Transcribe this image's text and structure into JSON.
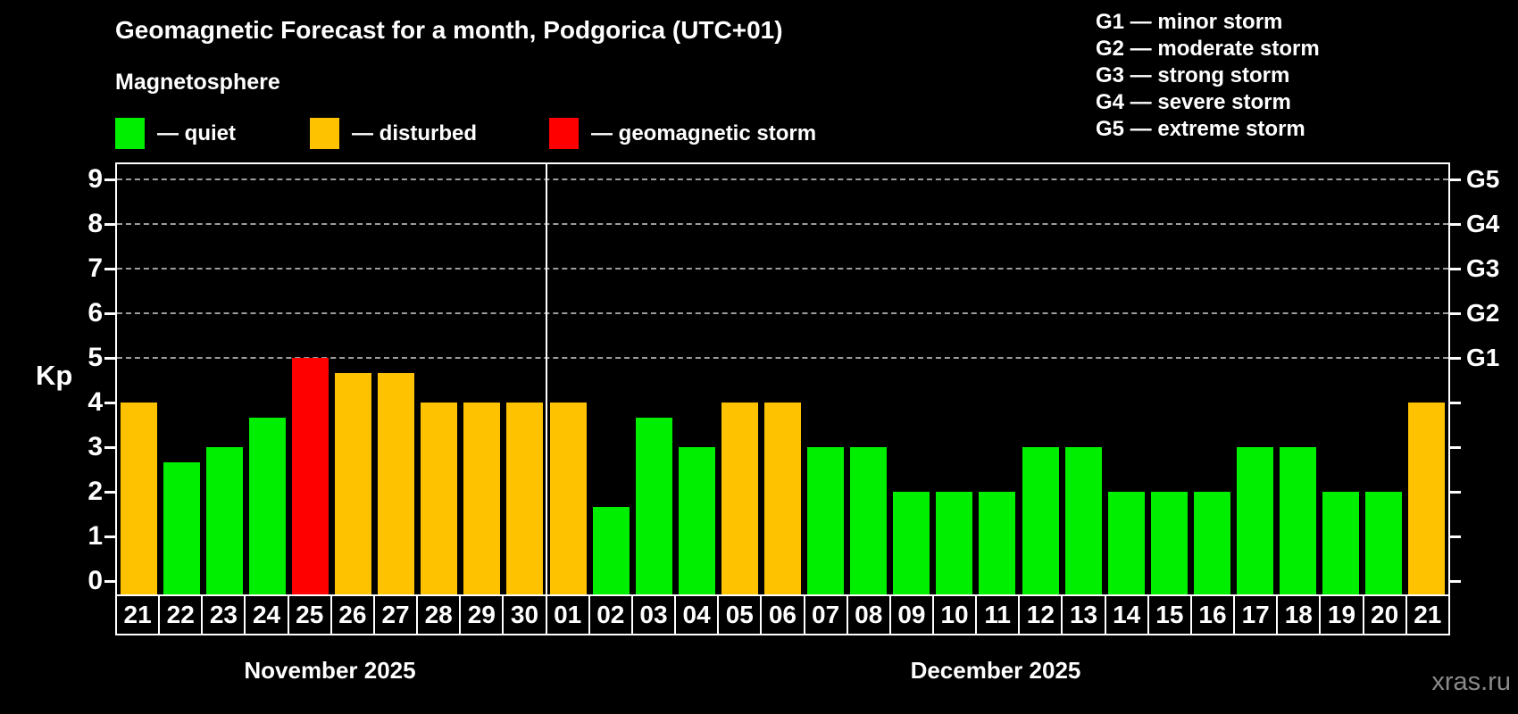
{
  "title": "Geomagnetic Forecast for a month, Podgorica (UTC+01)",
  "subtitle": "Magnetosphere",
  "legend": {
    "items": [
      {
        "label": "— quiet",
        "color_key": "quiet"
      },
      {
        "label": "— disturbed",
        "color_key": "disturbed"
      },
      {
        "label": "— geomagnetic storm",
        "color_key": "storm"
      }
    ]
  },
  "g_legend": [
    "G1 — minor storm",
    "G2 — moderate storm",
    "G3 — strong storm",
    "G4 — severe storm",
    "G5 — extreme storm"
  ],
  "colors": {
    "quiet": "#00ee00",
    "disturbed": "#ffc200",
    "storm": "#ff0000",
    "gridline": "#9d9d9d",
    "frame": "#ffffff",
    "watermark": "#8a8a8a"
  },
  "watermark": "xras.ru",
  "chart_data": {
    "type": "bar",
    "title": "Geomagnetic Forecast for a month, Podgorica (UTC+01)",
    "xlabel": "",
    "ylabel": "Kp",
    "ylim": [
      0,
      9
    ],
    "yticks": [
      0,
      1,
      2,
      3,
      4,
      5,
      6,
      7,
      8,
      9
    ],
    "grid": "horizontal dashed lines at Kp 5-9 only",
    "legend_position": "top",
    "right_axis_labels": [
      {
        "kp": 5,
        "label": "G1"
      },
      {
        "kp": 6,
        "label": "G2"
      },
      {
        "kp": 7,
        "label": "G3"
      },
      {
        "kp": 8,
        "label": "G4"
      },
      {
        "kp": 9,
        "label": "G5"
      }
    ],
    "months": [
      {
        "label": "November 2025",
        "days": 10
      },
      {
        "label": "December 2025",
        "days": 21
      }
    ],
    "bars": [
      {
        "month": "November 2025",
        "day": "21",
        "value": 4,
        "status": "disturbed"
      },
      {
        "month": "November 2025",
        "day": "22",
        "value": 2.67,
        "status": "quiet"
      },
      {
        "month": "November 2025",
        "day": "23",
        "value": 3,
        "status": "quiet"
      },
      {
        "month": "November 2025",
        "day": "24",
        "value": 3.67,
        "status": "quiet"
      },
      {
        "month": "November 2025",
        "day": "25",
        "value": 5,
        "status": "storm"
      },
      {
        "month": "November 2025",
        "day": "26",
        "value": 4.67,
        "status": "disturbed"
      },
      {
        "month": "November 2025",
        "day": "27",
        "value": 4.67,
        "status": "disturbed"
      },
      {
        "month": "November 2025",
        "day": "28",
        "value": 4,
        "status": "disturbed"
      },
      {
        "month": "November 2025",
        "day": "29",
        "value": 4,
        "status": "disturbed"
      },
      {
        "month": "November 2025",
        "day": "30",
        "value": 4,
        "status": "disturbed"
      },
      {
        "month": "December 2025",
        "day": "01",
        "value": 4,
        "status": "disturbed"
      },
      {
        "month": "December 2025",
        "day": "02",
        "value": 1.67,
        "status": "quiet"
      },
      {
        "month": "December 2025",
        "day": "03",
        "value": 3.67,
        "status": "quiet"
      },
      {
        "month": "December 2025",
        "day": "04",
        "value": 3,
        "status": "quiet"
      },
      {
        "month": "December 2025",
        "day": "05",
        "value": 4,
        "status": "disturbed"
      },
      {
        "month": "December 2025",
        "day": "06",
        "value": 4,
        "status": "disturbed"
      },
      {
        "month": "December 2025",
        "day": "07",
        "value": 3,
        "status": "quiet"
      },
      {
        "month": "December 2025",
        "day": "08",
        "value": 3,
        "status": "quiet"
      },
      {
        "month": "December 2025",
        "day": "09",
        "value": 2,
        "status": "quiet"
      },
      {
        "month": "December 2025",
        "day": "10",
        "value": 2,
        "status": "quiet"
      },
      {
        "month": "December 2025",
        "day": "11",
        "value": 2,
        "status": "quiet"
      },
      {
        "month": "December 2025",
        "day": "12",
        "value": 3,
        "status": "quiet"
      },
      {
        "month": "December 2025",
        "day": "13",
        "value": 3,
        "status": "quiet"
      },
      {
        "month": "December 2025",
        "day": "14",
        "value": 2,
        "status": "quiet"
      },
      {
        "month": "December 2025",
        "day": "15",
        "value": 2,
        "status": "quiet"
      },
      {
        "month": "December 2025",
        "day": "16",
        "value": 2,
        "status": "quiet"
      },
      {
        "month": "December 2025",
        "day": "17",
        "value": 3,
        "status": "quiet"
      },
      {
        "month": "December 2025",
        "day": "18",
        "value": 3,
        "status": "quiet"
      },
      {
        "month": "December 2025",
        "day": "19",
        "value": 2,
        "status": "quiet"
      },
      {
        "month": "December 2025",
        "day": "20",
        "value": 2,
        "status": "quiet"
      },
      {
        "month": "December 2025",
        "day": "21",
        "value": 4,
        "status": "disturbed"
      }
    ]
  }
}
